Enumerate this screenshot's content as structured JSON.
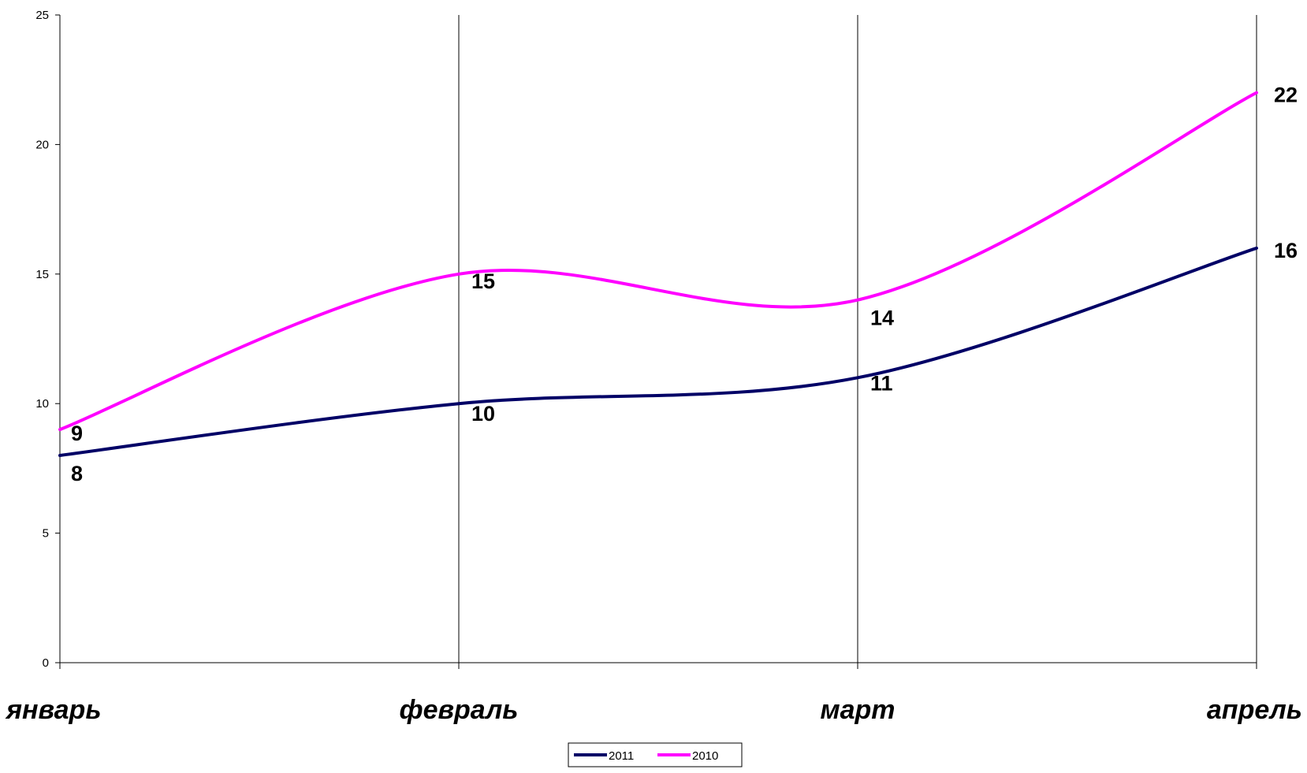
{
  "chart_data": {
    "type": "line",
    "smooth": true,
    "categories": [
      "январь",
      "февраль",
      "март",
      "апрель"
    ],
    "series": [
      {
        "name": "2011",
        "values": [
          8,
          10,
          11,
          16
        ],
        "color": "#000066"
      },
      {
        "name": "2010",
        "values": [
          9,
          15,
          14,
          22
        ],
        "color": "#ff00ff"
      }
    ],
    "ylim": [
      0,
      25
    ],
    "yticks": [
      0,
      5,
      10,
      15,
      20,
      25
    ],
    "grid": "vertical-category-lines",
    "legend": "bottom-center",
    "data_labels": true,
    "title": "",
    "xlabel": "",
    "ylabel": ""
  }
}
